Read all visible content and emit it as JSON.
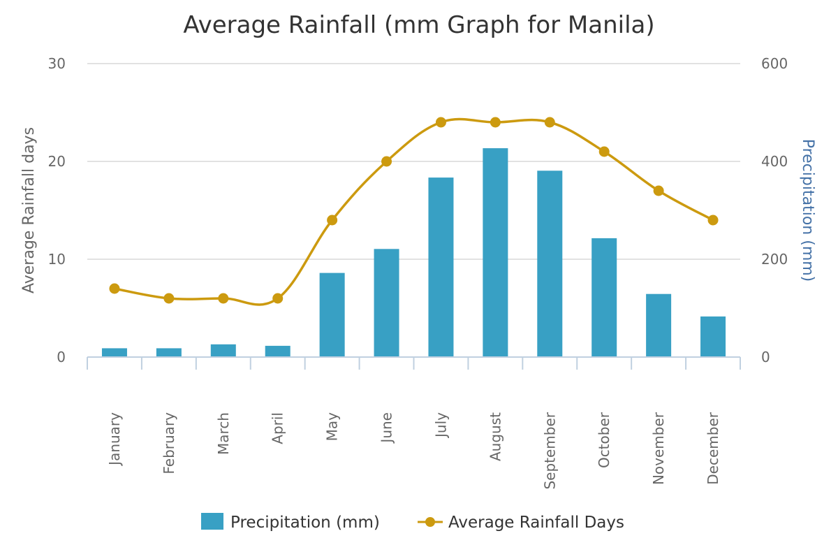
{
  "chart_data": {
    "type": "bar",
    "title": "Average Rainfall (mm Graph for Manila)",
    "categories": [
      "January",
      "February",
      "March",
      "April",
      "May",
      "June",
      "July",
      "August",
      "September",
      "October",
      "November",
      "December"
    ],
    "y_left": {
      "label": "Average Rainfall days",
      "range": [
        0,
        30
      ],
      "ticks": [
        "0",
        "10",
        "20",
        "30"
      ]
    },
    "y_right": {
      "label": "Precipitation (mm)",
      "range": [
        0,
        600
      ],
      "ticks": [
        "0",
        "200",
        "400",
        "600"
      ]
    },
    "series": [
      {
        "name": "Precipitation (mm)",
        "type": "bar",
        "axis": "right",
        "color": "#38a0c4",
        "values": [
          18,
          18,
          26,
          23,
          172,
          221,
          367,
          427,
          381,
          243,
          129,
          83
        ]
      },
      {
        "name": "Average Rainfall Days",
        "type": "line",
        "axis": "left",
        "color": "#cc9a0f",
        "values": [
          7,
          6,
          6,
          6,
          14,
          20,
          24,
          24,
          24,
          21,
          17,
          14
        ]
      }
    ],
    "grid": true,
    "legend": "bottom-center"
  }
}
